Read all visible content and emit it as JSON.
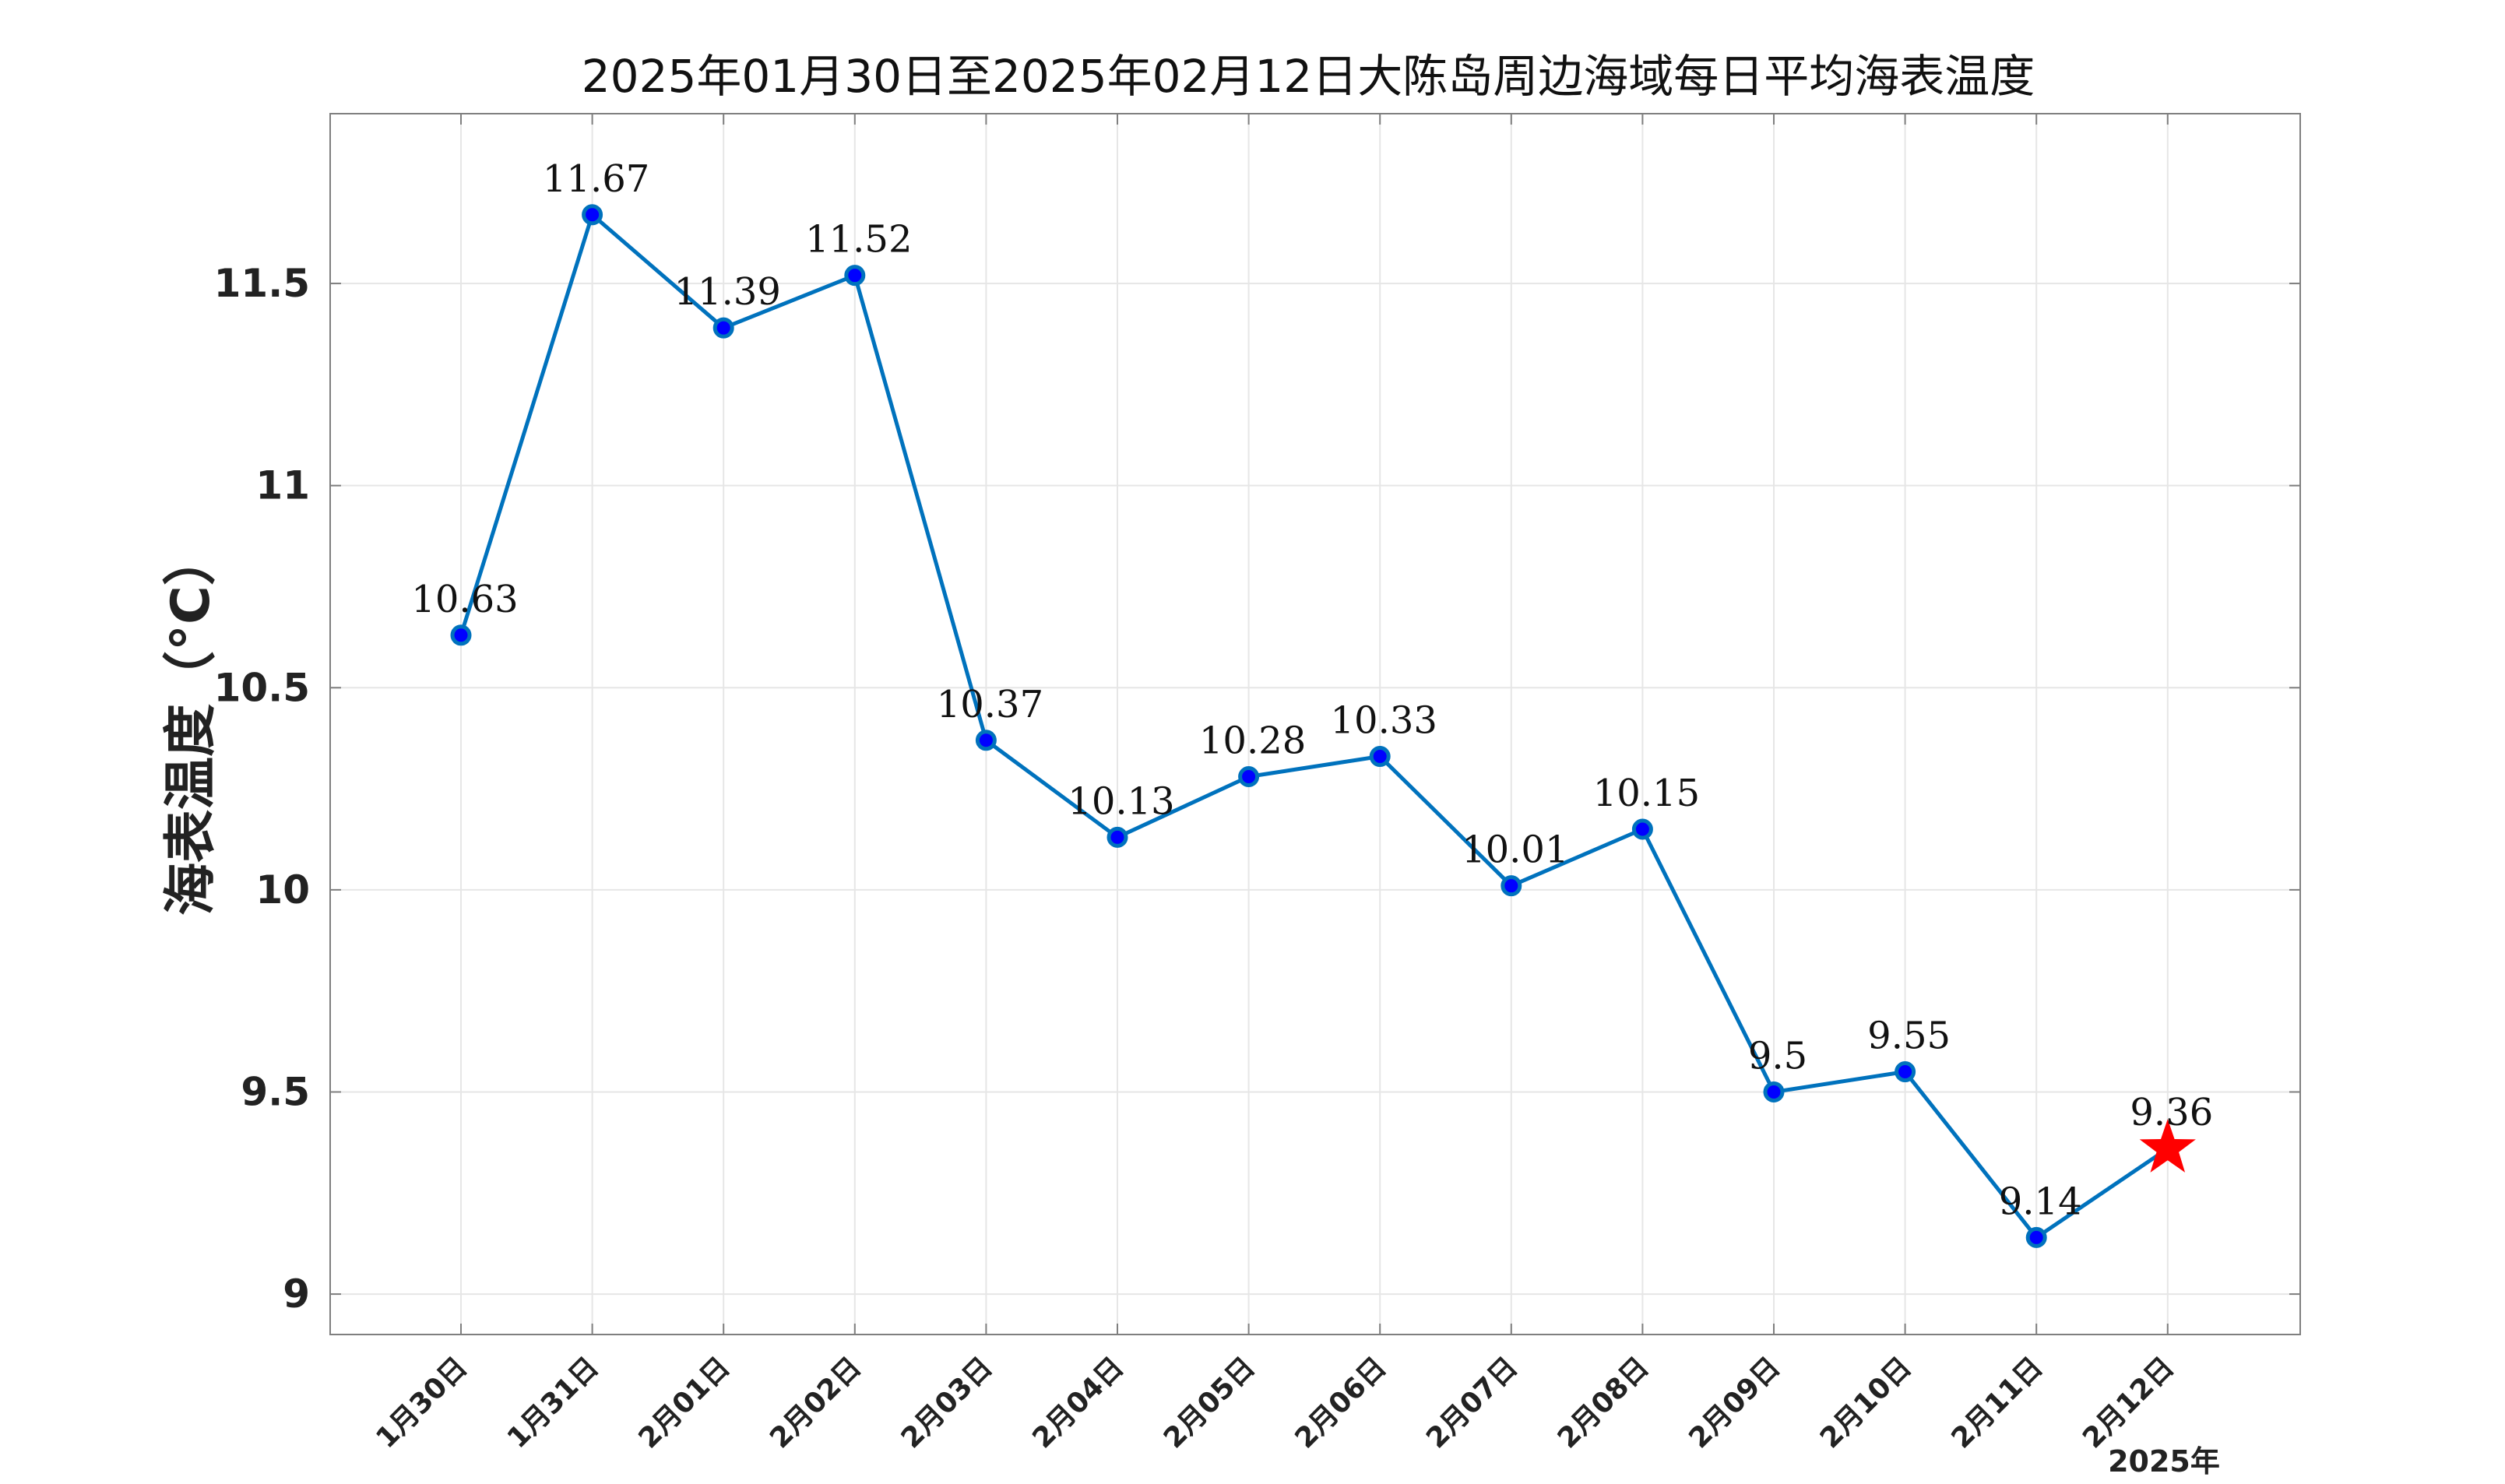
{
  "chart_data": {
    "type": "line",
    "title": "2025年01月30日至2025年02月12日大陈岛周边海域每日平均海表温度",
    "xlabel": "",
    "ylabel": "海表温度（°C）",
    "x_suffix_label": "2025年",
    "categories": [
      "1月30日",
      "1月31日",
      "2月01日",
      "2月02日",
      "2月03日",
      "2月04日",
      "2月05日",
      "2月06日",
      "2月07日",
      "2月08日",
      "2月09日",
      "2月10日",
      "2月11日",
      "2月12日"
    ],
    "values": [
      10.63,
      11.67,
      11.39,
      11.52,
      10.37,
      10.13,
      10.28,
      10.33,
      10.01,
      10.15,
      9.5,
      9.55,
      9.14,
      9.36
    ],
    "data_labels": [
      "10.63",
      "11.67",
      "11.39",
      "11.52",
      "10.37",
      "10.13",
      "10.28",
      "10.33",
      "10.01",
      "10.15",
      "9.5",
      "9.55",
      "9.14",
      "9.36"
    ],
    "ylim": [
      8.9,
      11.92
    ],
    "yticks": [
      9,
      9.5,
      10,
      10.5,
      11,
      11.5
    ],
    "ytick_labels": [
      "9",
      "9.5",
      "10",
      "10.5",
      "11",
      "11.5"
    ],
    "grid": true,
    "highlight_last_point": "star",
    "colors": {
      "line": "#0072BD",
      "marker_fill": "#0000FF",
      "marker_edge": "#0072BD",
      "highlight": "#FF0000",
      "grid": "#E6E6E6",
      "axes": "#7F7F7F"
    }
  }
}
